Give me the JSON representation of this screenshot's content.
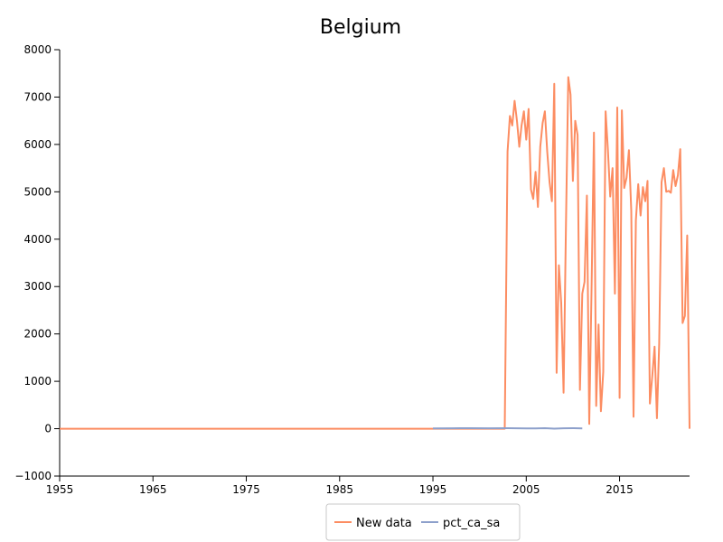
{
  "chart_data": {
    "type": "line",
    "title": "Belgium",
    "xlabel": "",
    "ylabel": "",
    "xlim": [
      1955,
      2022.5
    ],
    "ylim": [
      -1000,
      8000
    ],
    "x_ticks": [
      1955,
      1965,
      1975,
      1985,
      1995,
      2005,
      2015
    ],
    "y_ticks": [
      -1000,
      0,
      1000,
      2000,
      3000,
      4000,
      5000,
      6000,
      7000,
      8000
    ],
    "grid": false,
    "legend_position": "bottom",
    "series": [
      {
        "name": "New data",
        "color": "#fc8d62",
        "points": [
          [
            1955,
            0
          ],
          [
            1995,
            0
          ],
          [
            2002.7,
            0
          ],
          [
            2003.0,
            5850
          ],
          [
            2003.25,
            6600
          ],
          [
            2003.5,
            6400
          ],
          [
            2003.75,
            6920
          ],
          [
            2004.0,
            6500
          ],
          [
            2004.25,
            5950
          ],
          [
            2004.5,
            6400
          ],
          [
            2004.75,
            6700
          ],
          [
            2005.0,
            6100
          ],
          [
            2005.25,
            6750
          ],
          [
            2005.5,
            5050
          ],
          [
            2005.75,
            4850
          ],
          [
            2006.0,
            5420
          ],
          [
            2006.25,
            4680
          ],
          [
            2006.5,
            5950
          ],
          [
            2006.75,
            6450
          ],
          [
            2007.0,
            6700
          ],
          [
            2007.25,
            5850
          ],
          [
            2007.5,
            5200
          ],
          [
            2007.75,
            4800
          ],
          [
            2008.0,
            7280
          ],
          [
            2008.25,
            1180
          ],
          [
            2008.5,
            3450
          ],
          [
            2008.75,
            2650
          ],
          [
            2009.0,
            760
          ],
          [
            2009.25,
            4250
          ],
          [
            2009.5,
            7420
          ],
          [
            2009.75,
            7050
          ],
          [
            2010.0,
            5230
          ],
          [
            2010.25,
            6500
          ],
          [
            2010.5,
            6200
          ],
          [
            2010.75,
            820
          ],
          [
            2011.0,
            2850
          ],
          [
            2011.25,
            3100
          ],
          [
            2011.5,
            4920
          ],
          [
            2011.75,
            100
          ],
          [
            2012.0,
            3000
          ],
          [
            2012.25,
            6250
          ],
          [
            2012.5,
            480
          ],
          [
            2012.75,
            2200
          ],
          [
            2013.0,
            370
          ],
          [
            2013.25,
            1200
          ],
          [
            2013.5,
            6700
          ],
          [
            2013.75,
            5900
          ],
          [
            2014.0,
            4900
          ],
          [
            2014.25,
            5500
          ],
          [
            2014.5,
            2850
          ],
          [
            2014.75,
            6780
          ],
          [
            2015.0,
            650
          ],
          [
            2015.25,
            6720
          ],
          [
            2015.5,
            5080
          ],
          [
            2015.75,
            5300
          ],
          [
            2016.0,
            5880
          ],
          [
            2016.25,
            4600
          ],
          [
            2016.5,
            250
          ],
          [
            2016.75,
            4400
          ],
          [
            2017.0,
            5160
          ],
          [
            2017.25,
            4500
          ],
          [
            2017.5,
            5100
          ],
          [
            2017.75,
            4800
          ],
          [
            2018.0,
            5230
          ],
          [
            2018.25,
            530
          ],
          [
            2018.5,
            1100
          ],
          [
            2018.75,
            1730
          ],
          [
            2019.0,
            220
          ],
          [
            2019.25,
            1800
          ],
          [
            2019.5,
            5200
          ],
          [
            2019.75,
            5500
          ],
          [
            2020.0,
            5000
          ],
          [
            2020.25,
            5020
          ],
          [
            2020.5,
            4980
          ],
          [
            2020.75,
            5460
          ],
          [
            2021.0,
            5120
          ],
          [
            2021.25,
            5350
          ],
          [
            2021.5,
            5900
          ],
          [
            2021.75,
            2230
          ],
          [
            2022.0,
            2380
          ],
          [
            2022.25,
            4080
          ],
          [
            2022.5,
            0
          ]
        ]
      },
      {
        "name": "pct_ca_sa",
        "color": "#8da0cb",
        "points": [
          [
            1995,
            5
          ],
          [
            1997,
            8
          ],
          [
            1999,
            10
          ],
          [
            2001,
            8
          ],
          [
            2003,
            10
          ],
          [
            2005,
            6
          ],
          [
            2006,
            4
          ],
          [
            2007,
            10
          ],
          [
            2008,
            2
          ],
          [
            2009,
            8
          ],
          [
            2010,
            10
          ],
          [
            2011,
            5
          ]
        ]
      }
    ]
  }
}
